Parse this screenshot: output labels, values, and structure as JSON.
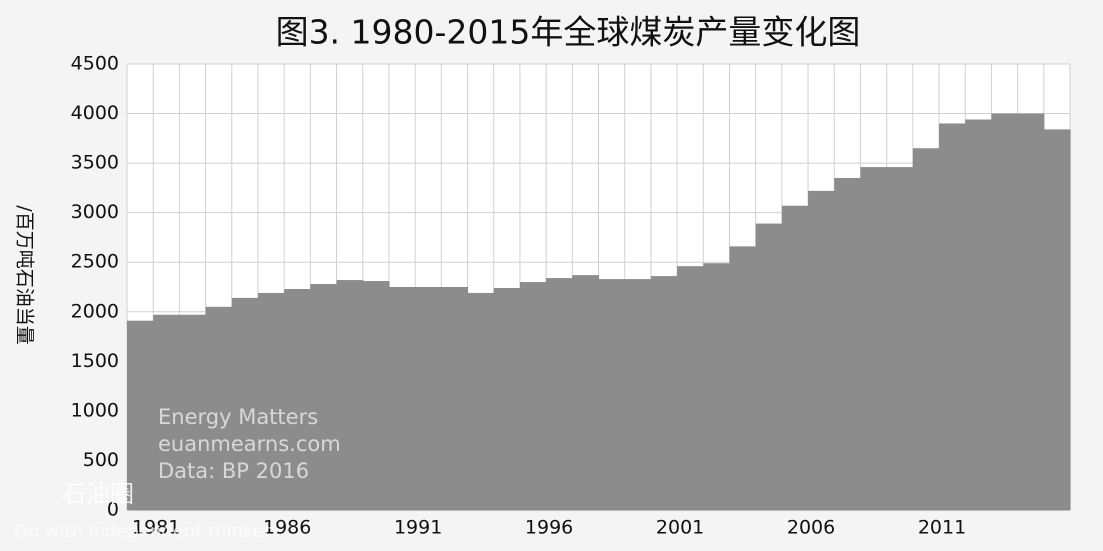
{
  "chart_data": {
    "type": "step-area",
    "title": "图3. 1980-2015年全球煤炭产量变化图",
    "y_label": "/百万吨石油当量",
    "categories": [
      null,
      "1981",
      null,
      null,
      null,
      null,
      "1986",
      null,
      null,
      null,
      null,
      "1991",
      null,
      null,
      null,
      null,
      "1996",
      null,
      null,
      null,
      null,
      "2001",
      null,
      null,
      null,
      null,
      "2006",
      null,
      null,
      null,
      null,
      "2011",
      null,
      null,
      null,
      null
    ],
    "values": [
      1910,
      1970,
      1970,
      2050,
      2140,
      2190,
      2230,
      2280,
      2320,
      2310,
      2250,
      2250,
      2250,
      2190,
      2240,
      2300,
      2340,
      2370,
      2330,
      2330,
      2360,
      2460,
      2490,
      2660,
      2890,
      3070,
      3220,
      3350,
      3460,
      3460,
      3650,
      3900,
      3940,
      4000,
      4000,
      3840
    ],
    "color": "#8c8c8c",
    "ylim": [
      0,
      4500
    ],
    "yticks": [
      0,
      500,
      1000,
      1500,
      2000,
      2500,
      3000,
      3500,
      4000,
      4500
    ],
    "grid": true,
    "annotations": [
      "Energy Matters",
      "euanmearns.com",
      "Data: BP 2016"
    ],
    "watermark": [
      "石油圈",
      "Go with independent thinker"
    ]
  }
}
